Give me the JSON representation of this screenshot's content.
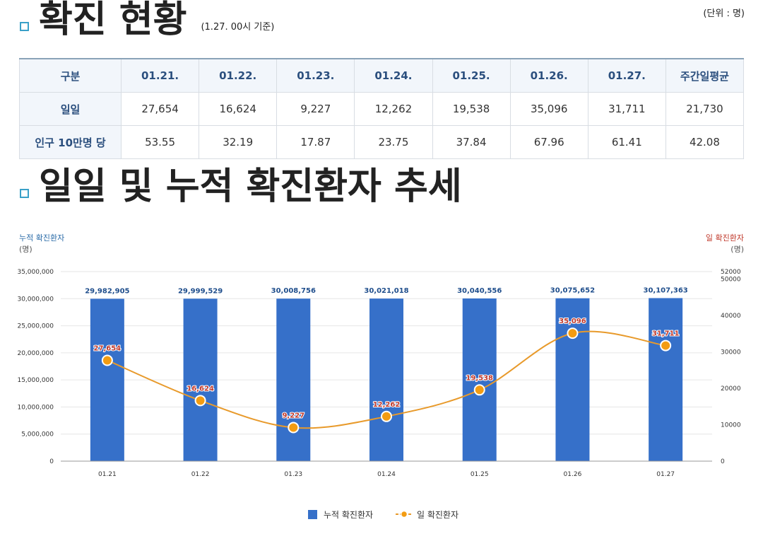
{
  "section1": {
    "title": "확진 현황",
    "basis": "(1.27. 00시 기준)",
    "unit": "(단위 : 명)"
  },
  "table": {
    "headers": [
      "구분",
      "01.21.",
      "01.22.",
      "01.23.",
      "01.24.",
      "01.25.",
      "01.26.",
      "01.27.",
      "주간일평균"
    ],
    "rows": [
      {
        "label": "일일",
        "values": [
          "27,654",
          "16,624",
          "9,227",
          "12,262",
          "19,538",
          "35,096",
          "31,711",
          "21,730"
        ]
      },
      {
        "label": "인구 10만명 당",
        "values": [
          "53.55",
          "32.19",
          "17.87",
          "23.75",
          "37.84",
          "67.96",
          "61.41",
          "42.08"
        ]
      }
    ]
  },
  "section2": {
    "title": "일일 및 누적 확진환자 추세"
  },
  "chart_data": {
    "type": "bar",
    "categories": [
      "01.21",
      "01.22",
      "01.23",
      "01.24",
      "01.25",
      "01.26",
      "01.27"
    ],
    "left_axis": {
      "title": "누적 확진환자",
      "unit": "(명)",
      "range": [
        0,
        35000000
      ],
      "ticks": [
        0,
        5000000,
        10000000,
        15000000,
        20000000,
        25000000,
        30000000,
        35000000
      ],
      "tick_labels": [
        "0",
        "5,000,000",
        "10,000,000",
        "15,000,000",
        "20,000,000",
        "25,000,000",
        "30,000,000",
        "35,000,000"
      ]
    },
    "right_axis": {
      "title": "일 확진환자",
      "unit": "(명)",
      "range": [
        0,
        52000
      ],
      "ticks": [
        0,
        10000,
        20000,
        30000,
        40000,
        50000,
        52000
      ],
      "tick_labels": [
        "0",
        "10000",
        "20000",
        "30000",
        "40000",
        "50000",
        "52000"
      ]
    },
    "series": [
      {
        "name": "누적 확진환자",
        "kind": "bar",
        "axis": "left",
        "color": "#3670c9",
        "values": [
          29982905,
          29999529,
          30008756,
          30021018,
          30040556,
          30075652,
          30107363
        ],
        "labels": [
          "29,982,905",
          "29,999,529",
          "30,008,756",
          "30,021,018",
          "30,040,556",
          "30,075,652",
          "30,107,363"
        ]
      },
      {
        "name": "일 확진환자",
        "kind": "line",
        "axis": "right",
        "color": "#e89a2b",
        "values": [
          27654,
          16624,
          9227,
          12262,
          19538,
          35096,
          31711
        ],
        "labels": [
          "27,654",
          "16,624",
          "9,227",
          "12,262",
          "19,538",
          "35,096",
          "31,711"
        ]
      }
    ],
    "grid": true,
    "legend": "bottom-center"
  }
}
